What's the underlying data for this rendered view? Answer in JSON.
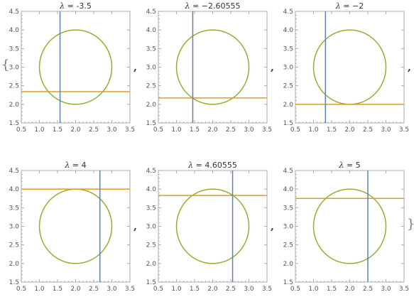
{
  "separator": ",",
  "open_brace": "{",
  "close_brace": "}",
  "colors": {
    "vertical_line": "#5E81B5",
    "horizontal_line": "#E19C24",
    "circle": "#8FB032",
    "frame": "#a9a9a9",
    "tick_text": "#555555",
    "title_text": "#333333"
  },
  "chart_data": [
    {
      "type": "line",
      "title_symbol": "λ",
      "title_value": " = -3.5",
      "xlim": [
        0.5,
        3.5
      ],
      "ylim": [
        1.5,
        4.5
      ],
      "xticks": [
        "0.5",
        "1.0",
        "1.5",
        "2.0",
        "2.5",
        "3.0",
        "3.5"
      ],
      "yticks": [
        "1.5",
        "2.0",
        "2.5",
        "3.0",
        "3.5",
        "4.0",
        "4.5"
      ],
      "vertical_line_x": 1.57,
      "horizontal_line_y": 2.34,
      "circle": {
        "center": [
          2,
          3
        ],
        "radius": 1
      }
    },
    {
      "type": "line",
      "title_symbol": "λ",
      "title_value": " = −2.60555",
      "xlim": [
        0.5,
        3.5
      ],
      "ylim": [
        1.5,
        4.5
      ],
      "xticks": [
        "0.5",
        "1.0",
        "1.5",
        "2.0",
        "2.5",
        "3.0",
        "3.5"
      ],
      "yticks": [
        "1.5",
        "2.0",
        "2.5",
        "3.0",
        "3.5",
        "4.0",
        "4.5"
      ],
      "vertical_line_x": 1.45,
      "horizontal_line_y": 2.17,
      "circle": {
        "center": [
          2,
          3
        ],
        "radius": 1
      }
    },
    {
      "type": "line",
      "title_symbol": "λ",
      "title_value": " = −2",
      "xlim": [
        0.5,
        3.5
      ],
      "ylim": [
        1.5,
        4.5
      ],
      "xticks": [
        "0.5",
        "1.0",
        "1.5",
        "2.0",
        "2.5",
        "3.0",
        "3.5"
      ],
      "yticks": [
        "1.5",
        "2.0",
        "2.5",
        "3.0",
        "3.5",
        "4.0",
        "4.5"
      ],
      "vertical_line_x": 1.33,
      "horizontal_line_y": 2.0,
      "circle": {
        "center": [
          2,
          3
        ],
        "radius": 1
      }
    },
    {
      "type": "line",
      "title_symbol": "λ",
      "title_value": " = 4",
      "xlim": [
        0.5,
        3.5
      ],
      "ylim": [
        1.5,
        4.5
      ],
      "xticks": [
        "0.5",
        "1.0",
        "1.5",
        "2.0",
        "2.5",
        "3.0",
        "3.5"
      ],
      "yticks": [
        "1.5",
        "2.0",
        "2.5",
        "3.0",
        "3.5",
        "4.0",
        "4.5"
      ],
      "vertical_line_x": 2.67,
      "horizontal_line_y": 4.0,
      "circle": {
        "center": [
          2,
          3
        ],
        "radius": 1
      }
    },
    {
      "type": "line",
      "title_symbol": "λ",
      "title_value": " = 4.60555",
      "xlim": [
        0.5,
        3.5
      ],
      "ylim": [
        1.5,
        4.5
      ],
      "xticks": [
        "0.5",
        "1.0",
        "1.5",
        "2.0",
        "2.5",
        "3.0",
        "3.5"
      ],
      "yticks": [
        "1.5",
        "2.0",
        "2.5",
        "3.0",
        "3.5",
        "4.0",
        "4.5"
      ],
      "vertical_line_x": 2.55,
      "horizontal_line_y": 3.83,
      "circle": {
        "center": [
          2,
          3
        ],
        "radius": 1
      }
    },
    {
      "type": "line",
      "title_symbol": "λ",
      "title_value": " = 5",
      "xlim": [
        0.5,
        3.5
      ],
      "ylim": [
        1.5,
        4.5
      ],
      "xticks": [
        "0.5",
        "1.0",
        "1.5",
        "2.0",
        "2.5",
        "3.0",
        "3.5"
      ],
      "yticks": [
        "1.5",
        "2.0",
        "2.5",
        "3.0",
        "3.5",
        "4.0",
        "4.5"
      ],
      "vertical_line_x": 2.5,
      "horizontal_line_y": 3.75,
      "circle": {
        "center": [
          2,
          3
        ],
        "radius": 1
      }
    }
  ]
}
